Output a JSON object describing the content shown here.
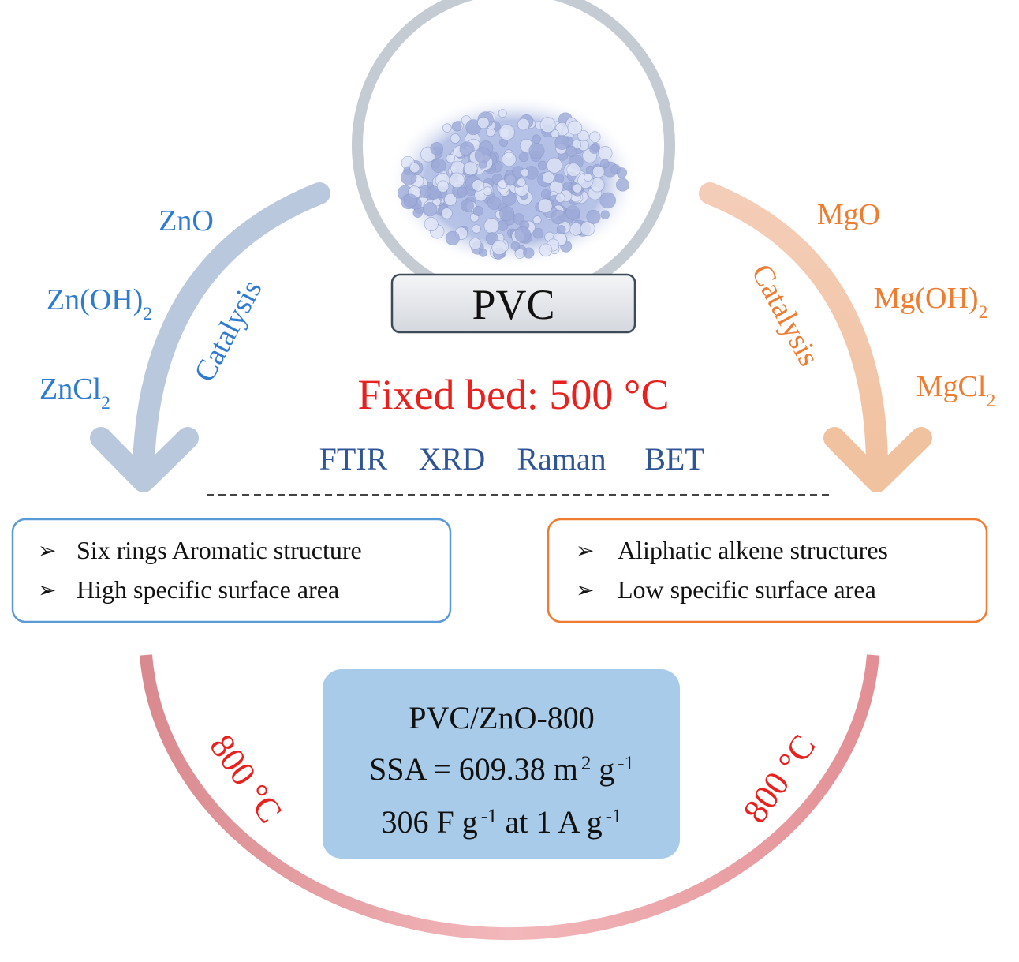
{
  "pvc": {
    "label": "PVC"
  },
  "condition": "Fixed bed: 500 °C",
  "techniques": [
    "FTIR",
    "XRD",
    "Raman",
    "BET"
  ],
  "left": {
    "catalysts": [
      [
        {
          "text": "ZnO"
        }
      ],
      [
        {
          "text": "Zn(OH)"
        },
        {
          "text": "2",
          "script": "sub"
        }
      ],
      [
        {
          "text": "ZnCl"
        },
        {
          "text": "2",
          "script": "sub"
        }
      ]
    ],
    "arrow_label": "Catalysis",
    "features": [
      "Six rings Aromatic structure",
      "High specific surface area"
    ],
    "temperature": "800 °C"
  },
  "right": {
    "catalysts": [
      [
        {
          "text": "MgO"
        }
      ],
      [
        {
          "text": "Mg(OH)"
        },
        {
          "text": "2",
          "script": "sub"
        }
      ],
      [
        {
          "text": "MgCl"
        },
        {
          "text": "2",
          "script": "sub"
        }
      ]
    ],
    "arrow_label": "Catalysis",
    "features": [
      "Aliphatic alkene structures",
      "Low specific surface area"
    ],
    "temperature": "800 °C"
  },
  "result": {
    "lines": [
      [
        {
          "text": "PVC/ZnO-800"
        }
      ],
      [
        {
          "text": "SSA = 609.38 m"
        },
        {
          "text": "2",
          "script": "sup"
        },
        {
          "text": "g"
        },
        {
          "text": "-1",
          "script": "sup"
        }
      ],
      [
        {
          "text": "306 F g"
        },
        {
          "text": "-1",
          "script": "sup"
        },
        {
          "text": "at 1 A g"
        },
        {
          "text": "-1",
          "script": "sup"
        }
      ]
    ]
  }
}
